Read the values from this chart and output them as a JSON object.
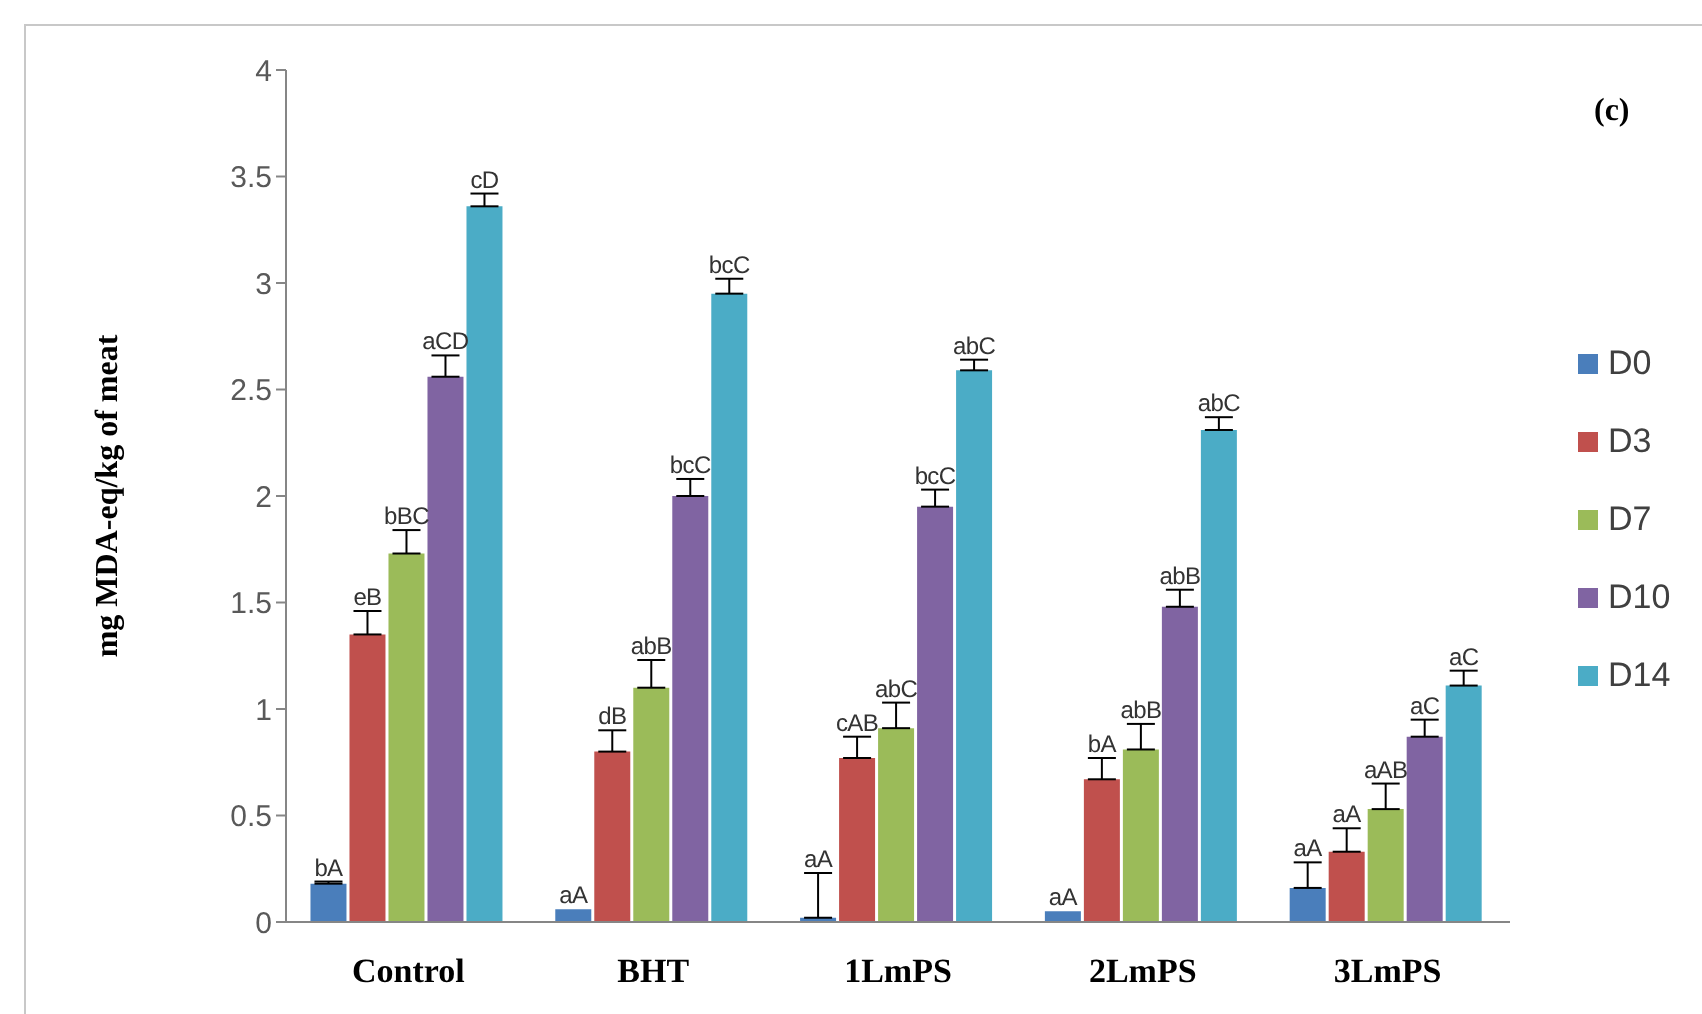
{
  "chart_data": {
    "type": "bar",
    "ylabel": "mg MDA-eq/kg of meat",
    "annotations": [
      "(c)"
    ],
    "categories": [
      "Control",
      "BHT",
      "1LmPS",
      "2LmPS",
      "3LmPS"
    ],
    "series": [
      {
        "name": "D0",
        "color": "#4a7ebb",
        "values": [
          0.18,
          0.06,
          0.02,
          0.05,
          0.16
        ],
        "errors": [
          [
            0.18,
            0.19
          ],
          null,
          [
            0.02,
            0.23
          ],
          null,
          [
            0.16,
            0.28
          ]
        ],
        "value_labels": [
          "bA",
          "aA",
          "aA",
          "aA",
          "aA"
        ]
      },
      {
        "name": "D3",
        "color": "#c0504d",
        "values": [
          1.35,
          0.8,
          0.77,
          0.67,
          0.33
        ],
        "errors": [
          [
            1.35,
            1.46
          ],
          [
            0.8,
            0.9
          ],
          [
            0.77,
            0.87
          ],
          [
            0.67,
            0.77
          ],
          [
            0.33,
            0.44
          ]
        ],
        "value_labels": [
          "eB",
          "dB",
          "cAB",
          "bA",
          "aA"
        ]
      },
      {
        "name": "D7",
        "color": "#9bbb59",
        "values": [
          1.73,
          1.1,
          0.91,
          0.81,
          0.53
        ],
        "errors": [
          [
            1.73,
            1.84
          ],
          [
            1.1,
            1.23
          ],
          [
            0.91,
            1.03
          ],
          [
            0.81,
            0.93
          ],
          [
            0.53,
            0.65
          ]
        ],
        "value_labels": [
          "bBC",
          "abB",
          "abC",
          "abB",
          "aAB"
        ]
      },
      {
        "name": "D10",
        "color": "#8064a2",
        "values": [
          2.56,
          2.0,
          1.95,
          1.48,
          0.87
        ],
        "errors": [
          [
            2.56,
            2.66
          ],
          [
            2.0,
            2.08
          ],
          [
            1.95,
            2.03
          ],
          [
            1.48,
            1.56
          ],
          [
            0.87,
            0.95
          ]
        ],
        "value_labels": [
          "aCD",
          "bcC",
          "bcC",
          "abB",
          "aC"
        ]
      },
      {
        "name": "D14",
        "color": "#4bacc6",
        "values": [
          3.36,
          2.95,
          2.59,
          2.31,
          1.11
        ],
        "errors": [
          [
            3.36,
            3.42
          ],
          [
            2.95,
            3.02
          ],
          [
            2.59,
            2.64
          ],
          [
            2.31,
            2.37
          ],
          [
            1.11,
            1.18
          ]
        ],
        "value_labels": [
          "cD",
          "bcC",
          "abC",
          "abC",
          "aC"
        ]
      }
    ],
    "ylim": [
      0,
      4
    ],
    "yticks": [
      0,
      0.5,
      1,
      1.5,
      2,
      2.5,
      3,
      3.5,
      4
    ],
    "legend": "right"
  }
}
